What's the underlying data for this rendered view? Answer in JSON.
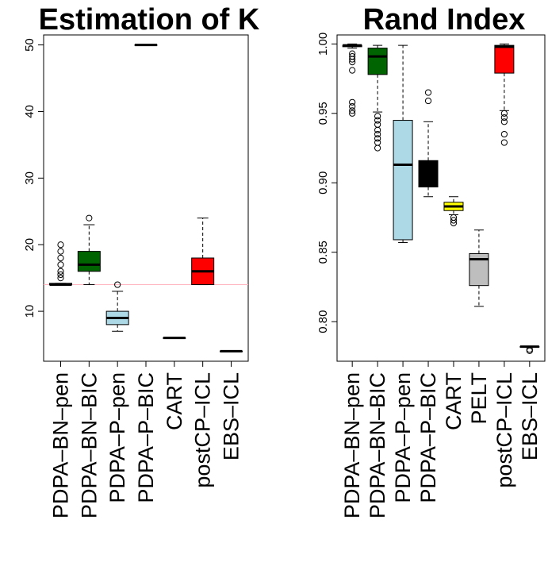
{
  "chart_data": [
    {
      "type": "boxplot",
      "title": "Estimation of K",
      "xlabel": "",
      "ylabel": "",
      "ylim": [
        2.5,
        51.5
      ],
      "yticks": [
        10,
        20,
        30,
        40,
        50
      ],
      "reference_line": {
        "y": 14,
        "color": "#ffb6c1"
      },
      "categories": [
        "PDPA–BN–pen",
        "PDPA–BN–BIC",
        "PDPA–P–pen",
        "PDPA–P–BIC",
        "CART",
        "postCP–ICL",
        "EBS–ICL"
      ],
      "boxes": [
        {
          "min": 14,
          "q1": 14,
          "median": 14,
          "q3": 14.2,
          "max": 14.2,
          "fill": "#ffffff",
          "outliers": [
            15,
            15.5,
            16,
            17,
            18,
            19,
            20
          ]
        },
        {
          "min": 14,
          "q1": 16,
          "median": 17,
          "q3": 19,
          "max": 23,
          "fill": "#006400",
          "outliers": [
            24
          ]
        },
        {
          "min": 7,
          "q1": 8,
          "median": 9,
          "q3": 10,
          "max": 13,
          "fill": "#add8e6",
          "outliers": [
            14
          ]
        },
        {
          "min": 50,
          "q1": 50,
          "median": 50,
          "q3": 50,
          "max": 50,
          "fill": "#ffffff",
          "outliers": []
        },
        {
          "min": 6,
          "q1": 6,
          "median": 6,
          "q3": 6,
          "max": 6,
          "fill": "#ffffff",
          "outliers": []
        },
        {
          "min": 14,
          "q1": 14,
          "median": 16,
          "q3": 18,
          "max": 24,
          "fill": "#ff0000",
          "outliers": []
        },
        {
          "min": 4,
          "q1": 4,
          "median": 4,
          "q3": 4,
          "max": 4,
          "fill": "#ffffff",
          "outliers": []
        }
      ]
    },
    {
      "type": "boxplot",
      "title": "Rand Index",
      "xlabel": "",
      "ylabel": "",
      "ylim": [
        0.7715,
        1.0065
      ],
      "yticks": [
        0.8,
        0.85,
        0.9,
        0.95,
        1.0
      ],
      "ytick_labels": [
        "0.80",
        "0.85",
        "0.90",
        "0.95",
        "1.00"
      ],
      "categories": [
        "PDPA–BN–pen",
        "PDPA–BN–BIC",
        "PDPA–P–pen",
        "PDPA–P–BIC",
        "CART",
        "PELT",
        "postCP–ICL",
        "EBS–ICL"
      ],
      "boxes": [
        {
          "min": 0.997,
          "q1": 0.998,
          "median": 0.999,
          "q3": 0.999,
          "max": 1.0,
          "fill": "#ffffff",
          "outliers": [
            0.993,
            0.991,
            0.989,
            0.987,
            0.981,
            0.958,
            0.955,
            0.952,
            0.95
          ]
        },
        {
          "min": 0.951,
          "q1": 0.978,
          "median": 0.991,
          "q3": 0.997,
          "max": 0.999,
          "fill": "#006400",
          "outliers": [
            0.948,
            0.945,
            0.942,
            0.938,
            0.935,
            0.932,
            0.929,
            0.925
          ]
        },
        {
          "min": 0.857,
          "q1": 0.859,
          "median": 0.913,
          "q3": 0.945,
          "max": 0.999,
          "fill": "#add8e6",
          "outliers": []
        },
        {
          "min": 0.89,
          "q1": 0.897,
          "median": 0.899,
          "q3": 0.916,
          "max": 0.944,
          "fill": "#000000",
          "outliers": [
            0.959,
            0.965
          ]
        },
        {
          "min": 0.877,
          "q1": 0.88,
          "median": 0.883,
          "q3": 0.886,
          "max": 0.89,
          "fill": "#ffff00",
          "outliers": [
            0.875,
            0.873,
            0.871
          ]
        },
        {
          "min": 0.811,
          "q1": 0.826,
          "median": 0.845,
          "q3": 0.849,
          "max": 0.866,
          "fill": "#bebebe",
          "outliers": []
        },
        {
          "min": 0.952,
          "q1": 0.979,
          "median": 0.998,
          "q3": 0.999,
          "max": 1.0,
          "fill": "#ff0000",
          "outliers": [
            0.95,
            0.947,
            0.944,
            0.935,
            0.929
          ]
        },
        {
          "min": 0.782,
          "q1": 0.782,
          "median": 0.782,
          "q3": 0.782,
          "max": 0.782,
          "fill": "#ffffff",
          "outliers": [
            0.78,
            0.779
          ]
        }
      ]
    }
  ]
}
